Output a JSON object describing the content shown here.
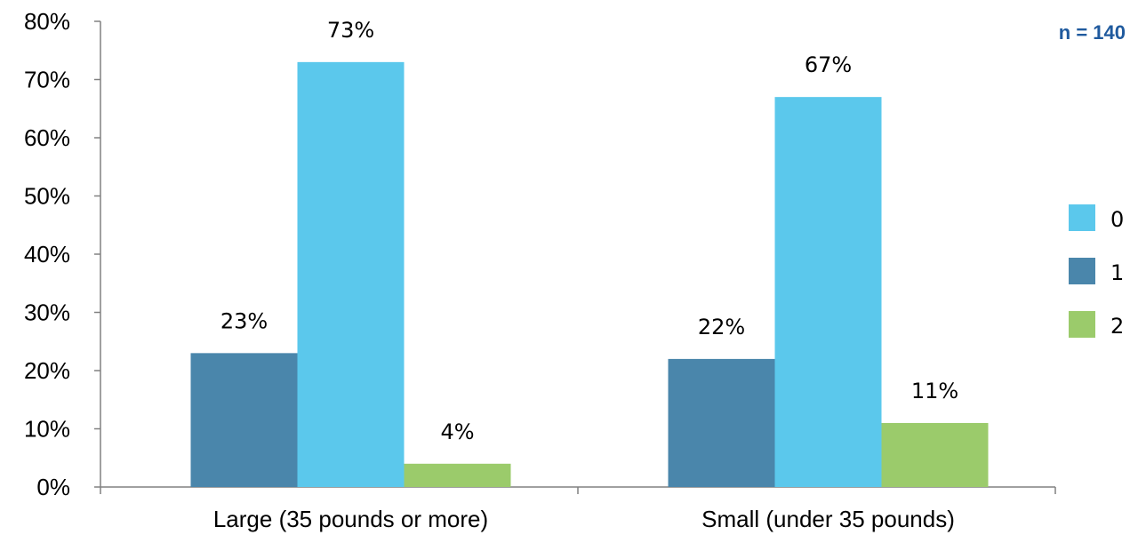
{
  "chart_data": {
    "type": "bar",
    "categories": [
      "Large (35 pounds or more)",
      "Small (under 35 pounds)"
    ],
    "series": [
      {
        "name": "1",
        "values": [
          23,
          22
        ],
        "labels": [
          "23%",
          "22%"
        ],
        "color": "#4a86ab"
      },
      {
        "name": "0",
        "values": [
          73,
          67
        ],
        "labels": [
          "73%",
          "67%"
        ],
        "color": "#5bc8ec"
      },
      {
        "name": "2",
        "values": [
          4,
          11
        ],
        "labels": [
          "4%",
          "11%"
        ],
        "color": "#9bcb6b"
      }
    ],
    "legend_order": [
      "0",
      "1",
      "2"
    ],
    "legend_position": "right",
    "ylim": [
      0,
      80
    ],
    "yticks": [
      0,
      10,
      20,
      30,
      40,
      50,
      60,
      70,
      80
    ],
    "ytick_labels": [
      "0%",
      "10%",
      "20%",
      "30%",
      "40%",
      "50%",
      "60%",
      "70%",
      "80%"
    ],
    "grid": false,
    "note": "n = 140",
    "title": "",
    "xlabel": "",
    "ylabel": ""
  }
}
